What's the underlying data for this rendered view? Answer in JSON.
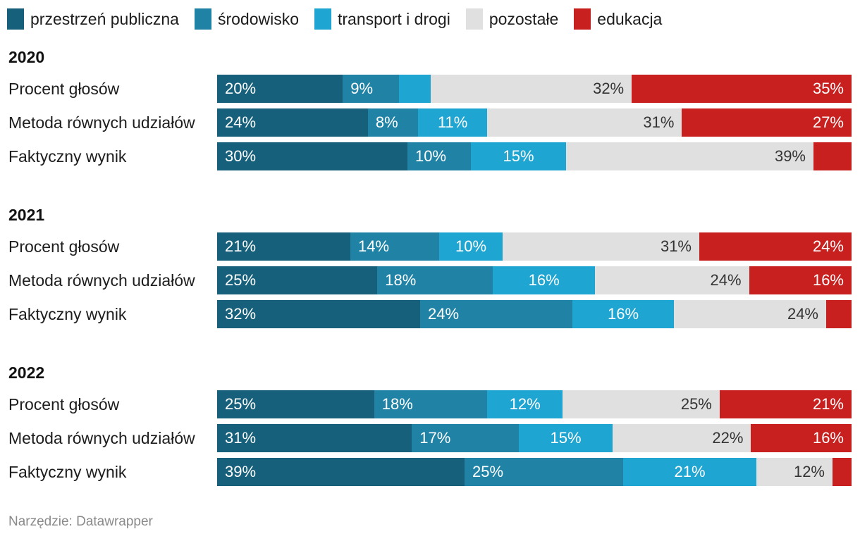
{
  "chart_data": {
    "type": "bar",
    "orientation": "horizontal",
    "stacked": true,
    "normalized": true,
    "legend": [
      {
        "name": "przestrzeń publiczna",
        "color": "#17607c"
      },
      {
        "name": "środowisko",
        "color": "#2083a6"
      },
      {
        "name": "transport i drogi",
        "color": "#1ea5d1"
      },
      {
        "name": "pozostałe",
        "color": "#e0e0e0"
      },
      {
        "name": "edukacja",
        "color": "#c81f1f"
      }
    ],
    "groups": [
      {
        "year": "2020",
        "rows": [
          {
            "label": "Procent głosów",
            "values": [
              20,
              9,
              5,
              32,
              35
            ],
            "value_labels": [
              "20%",
              "9%",
              "",
              "32%",
              "35%"
            ]
          },
          {
            "label": "Metoda równych udziałów",
            "values": [
              24,
              8,
              11,
              31,
              27
            ],
            "value_labels": [
              "24%",
              "8%",
              "11%",
              "31%",
              "27%"
            ]
          },
          {
            "label": "Faktyczny wynik",
            "values": [
              30,
              10,
              15,
              39,
              6
            ],
            "value_labels": [
              "30%",
              "10%",
              "15%",
              "39%",
              ""
            ]
          }
        ]
      },
      {
        "year": "2021",
        "rows": [
          {
            "label": "Procent głosów",
            "values": [
              21,
              14,
              10,
              31,
              24
            ],
            "value_labels": [
              "21%",
              "14%",
              "10%",
              "31%",
              "24%"
            ]
          },
          {
            "label": "Metoda równych udziałów",
            "values": [
              25,
              18,
              16,
              24,
              16
            ],
            "value_labels": [
              "25%",
              "18%",
              "16%",
              "24%",
              "16%"
            ]
          },
          {
            "label": "Faktyczny wynik",
            "values": [
              32,
              24,
              16,
              24,
              4
            ],
            "value_labels": [
              "32%",
              "24%",
              "16%",
              "24%",
              ""
            ]
          }
        ]
      },
      {
        "year": "2022",
        "rows": [
          {
            "label": "Procent głosów",
            "values": [
              25,
              18,
              12,
              25,
              21
            ],
            "value_labels": [
              "25%",
              "18%",
              "12%",
              "25%",
              "21%"
            ]
          },
          {
            "label": "Metoda równych udziałów",
            "values": [
              31,
              17,
              15,
              22,
              16
            ],
            "value_labels": [
              "31%",
              "17%",
              "15%",
              "22%",
              "16%"
            ]
          },
          {
            "label": "Faktyczny wynik",
            "values": [
              39,
              25,
              21,
              12,
              3
            ],
            "value_labels": [
              "39%",
              "25%",
              "21%",
              "12%",
              ""
            ]
          }
        ]
      }
    ]
  },
  "footer": "Narzędzie: Datawrapper"
}
